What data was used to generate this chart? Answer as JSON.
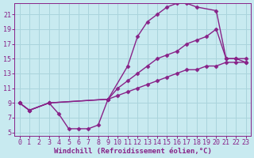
{
  "bg_color": "#c8eaf0",
  "grid_color": "#aad4dc",
  "line_color": "#882288",
  "marker": "D",
  "markersize": 2.5,
  "linewidth": 1.0,
  "xlabel": "Windchill (Refroidissement éolien,°C)",
  "xlabel_fontsize": 6.5,
  "tick_fontsize": 6,
  "xlim": [
    -0.5,
    23.5
  ],
  "ylim": [
    4.5,
    22.5
  ],
  "xticks": [
    0,
    1,
    2,
    3,
    4,
    5,
    6,
    7,
    8,
    9,
    10,
    11,
    12,
    13,
    14,
    15,
    16,
    17,
    18,
    19,
    20,
    21,
    22,
    23
  ],
  "yticks": [
    5,
    7,
    9,
    11,
    13,
    15,
    17,
    19,
    21
  ],
  "curves": [
    {
      "x": [
        0,
        1,
        3,
        4,
        5,
        6,
        7,
        8,
        9,
        11,
        12,
        13,
        14,
        15,
        16,
        17,
        18,
        20,
        21,
        22,
        23
      ],
      "y": [
        9,
        8,
        9,
        7.5,
        5.5,
        5.5,
        5.5,
        6,
        9.5,
        14,
        18,
        20,
        21,
        22,
        22.5,
        22.5,
        22,
        21.5,
        15,
        15,
        14.5
      ]
    },
    {
      "x": [
        0,
        1,
        3,
        9,
        10,
        11,
        12,
        13,
        14,
        15,
        16,
        17,
        18,
        19,
        20,
        21,
        22,
        23
      ],
      "y": [
        9,
        8,
        9,
        9.5,
        11,
        12,
        13,
        14,
        15,
        15.5,
        16,
        17,
        17.5,
        18,
        19,
        15,
        15,
        15
      ]
    },
    {
      "x": [
        0,
        1,
        3,
        9,
        10,
        11,
        12,
        13,
        14,
        15,
        16,
        17,
        18,
        19,
        20,
        21,
        22,
        23
      ],
      "y": [
        9,
        8,
        9,
        9.5,
        10,
        10.5,
        11,
        11.5,
        12,
        12.5,
        13,
        13.5,
        13.5,
        14,
        14,
        14.5,
        14.5,
        14.5
      ]
    }
  ]
}
